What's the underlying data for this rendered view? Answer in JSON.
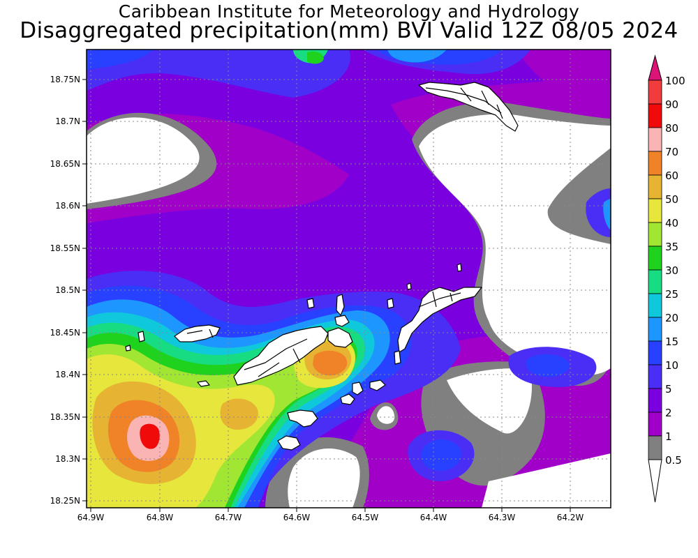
{
  "title": {
    "line1": "Caribbean Institute for Meteorology and Hydrology",
    "line2": "Disaggregated precipitation(mm) BVI Valid 12Z 08/05 2024"
  },
  "map": {
    "lat_ticks": [
      "18.75N",
      "18.7N",
      "18.65N",
      "18.6N",
      "18.55N",
      "18.5N",
      "18.45N",
      "18.4N",
      "18.35N",
      "18.3N",
      "18.25N"
    ],
    "lon_ticks": [
      "64.9W",
      "64.8W",
      "64.7W",
      "64.6W",
      "64.5W",
      "64.4W",
      "64.3W",
      "64.2W"
    ],
    "lat_range": [
      18.24,
      18.77
    ],
    "lon_range": [
      -64.905,
      -64.14
    ]
  },
  "colorbar": {
    "labels": [
      "100",
      "90",
      "80",
      "70",
      "60",
      "50",
      "40",
      "35",
      "30",
      "25",
      "20",
      "15",
      "10",
      "5",
      "2",
      "1",
      "0.5"
    ],
    "colors": {
      "lt05": "#ffffff",
      "c05_1": "#808080",
      "c1_2": "#a000c8",
      "c2_5": "#7a00e0",
      "c5_10": "#4b2ef5",
      "c10_15": "#2840ff",
      "c15_20": "#1e96ff",
      "c20_25": "#10c8dc",
      "c25_30": "#18dc82",
      "c30_35": "#1ed21e",
      "c35_40": "#a0e632",
      "c40_50": "#e6e63c",
      "c50_60": "#e6b432",
      "c60_70": "#f08228",
      "c70_80": "#fab4b4",
      "c80_90": "#f00a0a",
      "c90_100": "#f03c3c",
      "gt100": "#dc1478"
    }
  }
}
